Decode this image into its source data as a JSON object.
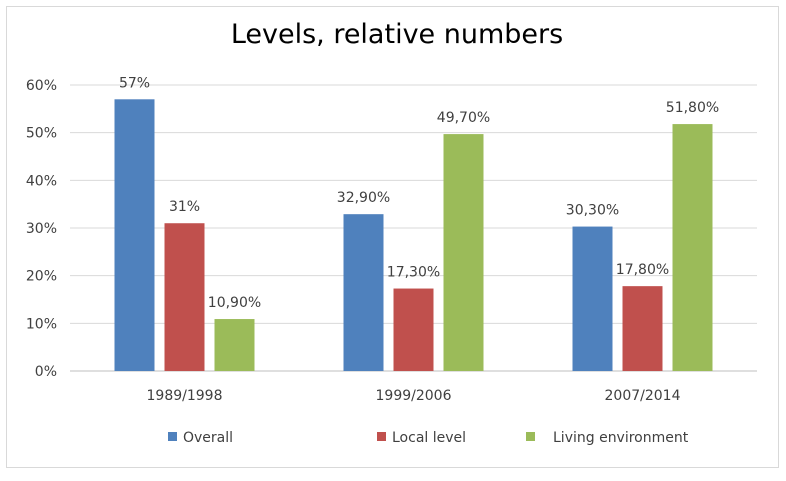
{
  "chart_data": {
    "type": "bar",
    "title": "Levels, relative numbers",
    "categories": [
      "1989/1998",
      "1999/2006",
      "2007/2014"
    ],
    "series": [
      {
        "name": "Overall",
        "color": "#4f81bd",
        "values": [
          57,
          32.9,
          30.3
        ],
        "labels": [
          "57%",
          "32,90%",
          "30,30%"
        ]
      },
      {
        "name": "Local level",
        "color": "#c0504d",
        "values": [
          31,
          17.3,
          17.8
        ],
        "labels": [
          "31%",
          "17,30%",
          "17,80%"
        ]
      },
      {
        "name": "Living environment",
        "color": "#9bbb59",
        "values": [
          10.9,
          49.7,
          51.8
        ],
        "labels": [
          "10,90%",
          "49,70%",
          "51,80%"
        ]
      }
    ],
    "yticks": [
      "0%",
      "10%",
      "20%",
      "30%",
      "40%",
      "50%",
      "60%"
    ],
    "ylim": [
      0,
      60
    ],
    "grid": true,
    "legend_position": "bottom"
  }
}
